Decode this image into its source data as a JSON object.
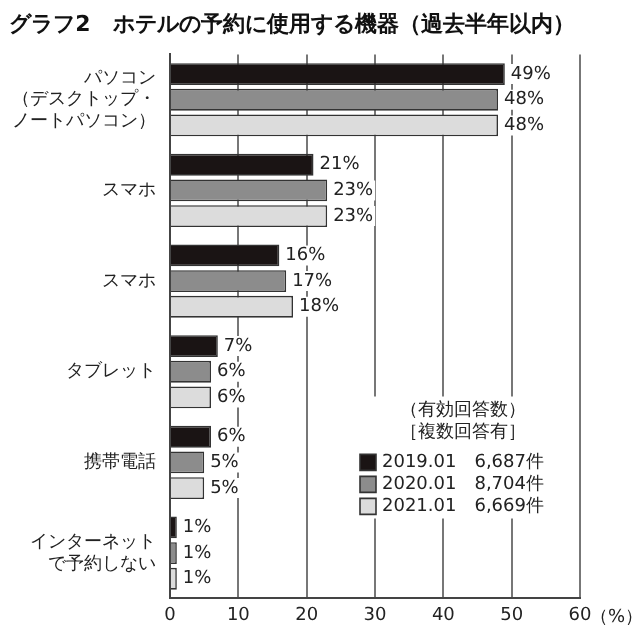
{
  "chart_data": {
    "type": "bar",
    "orientation": "horizontal",
    "title": "グラフ2　ホテルの予約に使用する機器（過去半年以内）",
    "xlabel": "（%）",
    "legend_title": "（有効回答数）［複数回答有］",
    "categories": [
      "パソコン（デスクトップ・ノートパソコン）",
      "スマホ",
      "スマホ",
      "タブレット",
      "携帯電話",
      "インターネットで予約しない"
    ],
    "series": [
      {
        "name": "2019.01　6,687件",
        "color": "#1a1414",
        "values": [
          49,
          21,
          16,
          7,
          6,
          1
        ],
        "value_labels": [
          "49%",
          "21%",
          "16%",
          "7%",
          "6%",
          "1%"
        ]
      },
      {
        "name": "2020.01　8,704件",
        "color": "#8c8c8c",
        "values": [
          48,
          23,
          17,
          6,
          5,
          1
        ],
        "value_labels": [
          "48%",
          "23%",
          "17%",
          "6%",
          "5%",
          "1%"
        ]
      },
      {
        "name": "2021.01　6,669件",
        "color": "#dcdcdc",
        "values": [
          48,
          23,
          18,
          6,
          5,
          1
        ],
        "value_labels": [
          "48%",
          "23%",
          "18%",
          "6%",
          "5%",
          "1%"
        ]
      }
    ],
    "xlim": [
      0,
      60
    ],
    "xticks": [
      0,
      10,
      20,
      30,
      40,
      50,
      60
    ],
    "grid": "x",
    "legend": "bottom right"
  }
}
